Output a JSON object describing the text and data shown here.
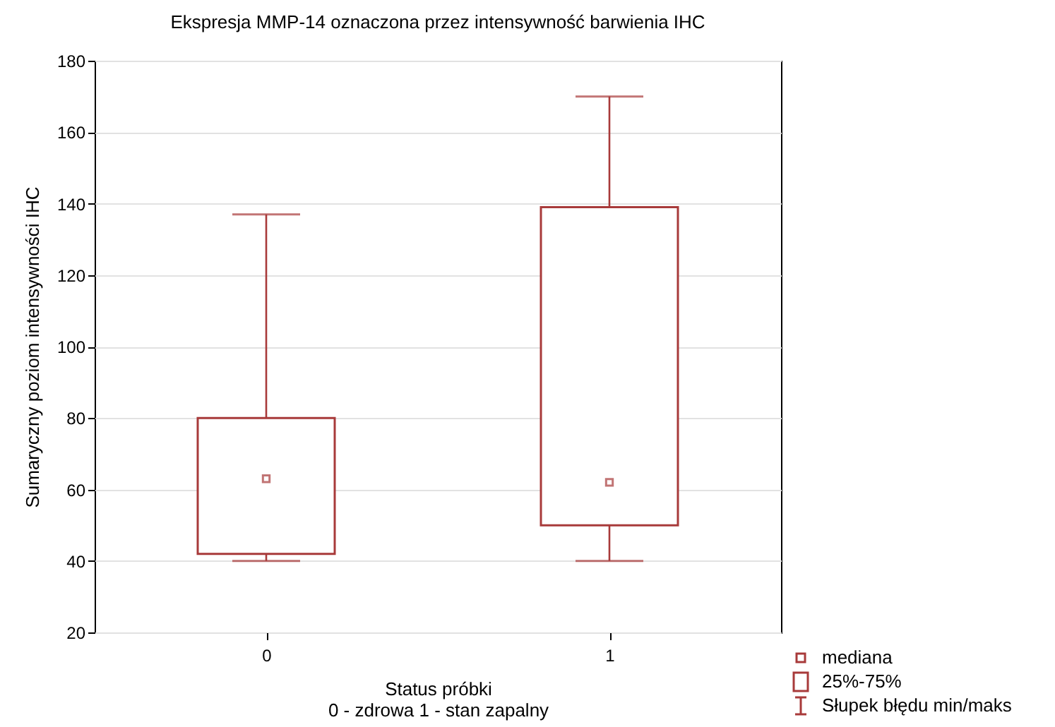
{
  "chart_data": {
    "type": "box",
    "title": "Ekspresja MMP-14 oznaczona przez intensywność barwienia IHC",
    "xlabel": "Status próbki\n0 - zdrowa 1 - stan zapalny",
    "ylabel": "Sumaryczny poziom intensywności IHC",
    "categories": [
      "0",
      "1"
    ],
    "series": [
      {
        "color": "#a83a3a",
        "boxes": [
          {
            "low": 40,
            "q1": 42,
            "median": 63,
            "q3": 80,
            "high": 137
          },
          {
            "low": 40,
            "q1": 50,
            "median": 62,
            "q3": 139,
            "high": 170
          }
        ]
      }
    ],
    "ylim": [
      20,
      180
    ],
    "yticks": [
      20,
      40,
      60,
      80,
      100,
      120,
      140,
      160,
      180
    ],
    "grid": "y",
    "annotations": [
      "mediana",
      "25%-75%",
      "Słupek błędu min/maks"
    ]
  }
}
